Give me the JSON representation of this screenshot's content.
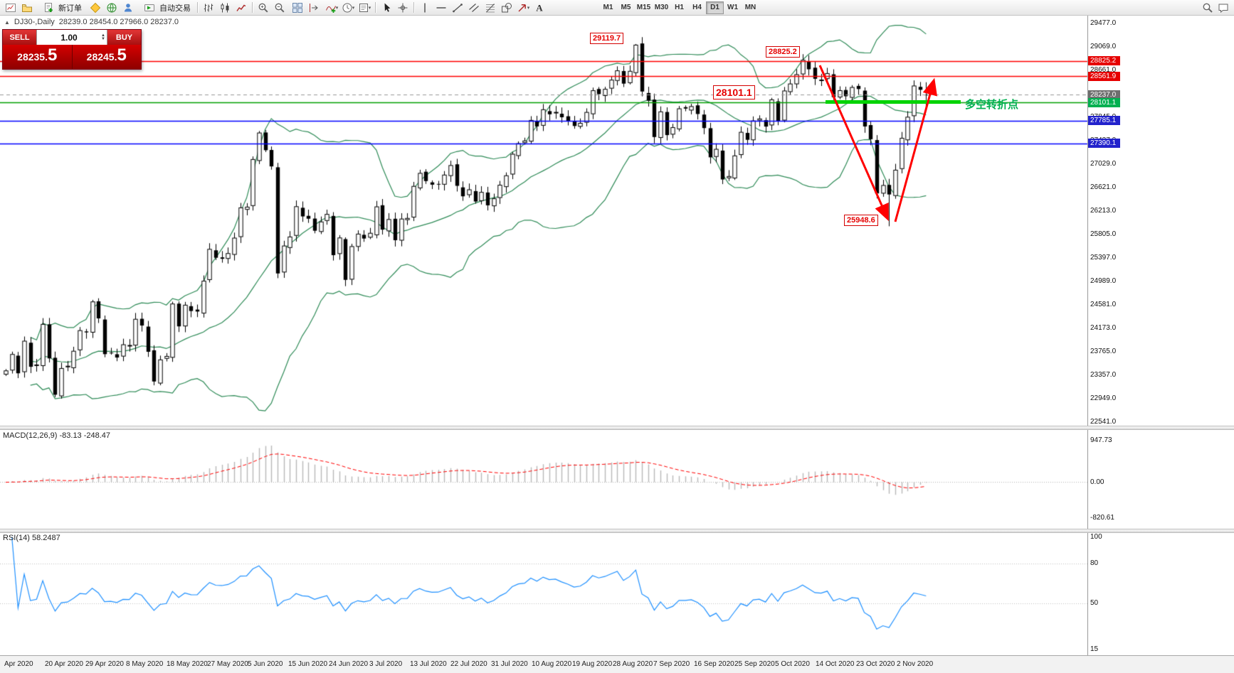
{
  "toolbar": {
    "new_order_label": "新订单",
    "autotrading_label": "自动交易",
    "timeframes": [
      "M1",
      "M5",
      "M15",
      "M30",
      "H1",
      "H4",
      "D1",
      "W1",
      "MN"
    ],
    "active_timeframe": "D1",
    "left_icons": [
      "new-chart-icon",
      "chart-profiles-icon"
    ],
    "account_icons": [
      "metaeditor-icon",
      "market-icon",
      "community-icon"
    ],
    "chart_type_icons": [
      "bars-chart-icon",
      "candlestick-chart-icon",
      "line-chart-icon"
    ],
    "zoom_icons": [
      "zoom-in-icon",
      "zoom-out-icon"
    ],
    "window_icons": [
      "auto-arrange-icon",
      "chart-shift-icon"
    ],
    "insert_icons": [
      "indicators-icon",
      "periods-icon",
      "templates-icon"
    ],
    "pointer_icons": [
      "cursor-icon",
      "crosshair-icon"
    ],
    "object_icons": [
      "vertical-line-icon",
      "horizontal-line-icon",
      "trendline-icon",
      "channel-icon",
      "fibonacci-icon",
      "shapes-icon",
      "arrow-icon",
      "text-icon"
    ],
    "right_icons": [
      "search-icon",
      "chat-icon"
    ]
  },
  "chart_header": {
    "collapse_glyph": "▲",
    "title": "DJ30-,Daily",
    "ohlc": "28239.0 28454.0 27966.0 28237.0"
  },
  "trade_panel": {
    "sell_label": "SELL",
    "buy_label": "BUY",
    "volume": "1.00",
    "sell_price": "28235.",
    "sell_price_big": "5",
    "buy_price": "28245.",
    "buy_price_big": "5"
  },
  "annotations": {
    "peak": "29119.7",
    "resistance": "28825.2",
    "pivot": "28101.1",
    "low": "25948.6",
    "note": "多空转折点"
  },
  "price_scale": {
    "gridlines": [
      "29477.0",
      "29069.0",
      "28661.0",
      "28253.0",
      "27845.0",
      "27437.0",
      "27029.0",
      "26621.0",
      "26213.0",
      "25805.0",
      "25397.0",
      "24989.0",
      "24581.0",
      "24173.0",
      "23765.0",
      "23357.0",
      "22949.0",
      "22541.0"
    ],
    "markers": [
      {
        "text": "28825.2",
        "value": 28825.2,
        "bg": "#e60000"
      },
      {
        "text": "28561.9",
        "value": 28561.9,
        "bg": "#e60000"
      },
      {
        "text": "28237.0",
        "value": 28237.0,
        "bg": "#6e6e6e"
      },
      {
        "text": "28101.1",
        "value": 28101.1,
        "bg": "#00b050"
      },
      {
        "text": "27785.1",
        "value": 27785.1,
        "bg": "#2222cc"
      },
      {
        "text": "27390.1",
        "value": 27390.1,
        "bg": "#2222cc"
      }
    ]
  },
  "macd": {
    "name": "MACD(12,26,9)",
    "values": "-83.13 -248.47",
    "scale": [
      {
        "text": "947.73",
        "value": 947.73
      },
      {
        "text": "0.00",
        "value": 0
      },
      {
        "text": "-820.61",
        "value": -820.61
      }
    ]
  },
  "rsi": {
    "name": "RSI(14)",
    "values": "58.2487",
    "scale": [
      {
        "text": "100",
        "value": 100
      },
      {
        "text": "80",
        "value": 80
      },
      {
        "text": "50",
        "value": 50
      },
      {
        "text": "15",
        "value": 15
      }
    ],
    "levels": [
      80,
      50
    ]
  },
  "date_axis": [
    "Apr 2020",
    "20 Apr 2020",
    "29 Apr 2020",
    "8 May 2020",
    "18 May 2020",
    "27 May 2020",
    "5 Jun 2020",
    "15 Jun 2020",
    "24 Jun 2020",
    "3 Jul 2020",
    "13 Jul 2020",
    "22 Jul 2020",
    "31 Jul 2020",
    "10 Aug 2020",
    "19 Aug 2020",
    "28 Aug 2020",
    "7 Sep 2020",
    "16 Sep 2020",
    "25 Sep 2020",
    "5 Oct 2020",
    "14 Oct 2020",
    "23 Oct 2020",
    "2 Nov 2020"
  ],
  "chart_data": {
    "type": "candlestick",
    "symbol": "DJ30-",
    "timeframe": "Daily",
    "last_ohlc": {
      "open": 28239.0,
      "high": 28454.0,
      "low": 27966.0,
      "close": 28237.0
    },
    "marked_points": {
      "swing_high": 29119.7,
      "resistance": 28825.2,
      "pivot_line": 28101.1,
      "swing_low": 25948.6
    },
    "closes": [
      23434,
      23719,
      23391,
      23950,
      23504,
      23537,
      24242,
      23650,
      23018,
      23475,
      23515,
      23775,
      24134,
      24102,
      24634,
      24346,
      23724,
      23750,
      23665,
      23888,
      23876,
      24331,
      24222,
      23765,
      23248,
      23625,
      23685,
      24597,
      24207,
      24576,
      24474,
      24465,
      24995,
      25548,
      25401,
      25383,
      25475,
      25743,
      26270,
      26282,
      27111,
      27572,
      27272,
      26990,
      25128,
      25606,
      25763,
      26290,
      26120,
      26080,
      25871,
      26025,
      26156,
      25446,
      25746,
      25016,
      25596,
      25813,
      25735,
      25827,
      26287,
      25890,
      26067,
      25706,
      26075,
      26086,
      26643,
      26870,
      26735,
      26672,
      26681,
      26840,
      27006,
      26652,
      26470,
      26584,
      26379,
      26539,
      26313,
      26428,
      26664,
      26828,
      27202,
      27387,
      27433,
      27791,
      27686,
      27977,
      27897,
      27931,
      27845,
      27778,
      27693,
      27740,
      27930,
      28308,
      28248,
      28332,
      28492,
      28654,
      28430,
      28645,
      29101,
      28293,
      28133,
      27501,
      27940,
      27535,
      27666,
      27993,
      27996,
      28032,
      27902,
      27657,
      27148,
      27288,
      26763,
      26815,
      27174,
      27584,
      27453,
      27782,
      27817,
      27683,
      28149,
      27773,
      28303,
      28425,
      28587,
      28838,
      28680,
      28514,
      28494,
      28606,
      28195,
      28309,
      28211,
      28364,
      28336,
      27685,
      27463,
      26520,
      26659,
      26502,
      26925,
      27480,
      27847,
      28390,
      28323,
      28237
    ],
    "overrides": {
      "102": {
        "h": 29119.7
      },
      "143": {
        "l": 25948.6
      },
      "149": {
        "o": 28239.0,
        "h": 28454.0,
        "l": 27966.0,
        "c": 28237.0
      }
    },
    "horizontal_lines": [
      {
        "value": 28825.2,
        "color": "#ff0000",
        "style": "solid"
      },
      {
        "value": 28561.9,
        "color": "#ff0000",
        "style": "solid"
      },
      {
        "value": 28237.0,
        "color": "#999999",
        "style": "dash"
      },
      {
        "value": 28101.1,
        "color": "#00a000",
        "style": "solid"
      },
      {
        "value": 27785.1,
        "color": "#0000ff",
        "style": "solid"
      },
      {
        "value": 27390.1,
        "color": "#0000ff",
        "style": "solid"
      }
    ],
    "indicators": {
      "bollinger": {
        "period": 20,
        "deviation": 2,
        "color": "#2e8b57"
      },
      "macd": {
        "fast": 12,
        "slow": 26,
        "signal": 9
      },
      "rsi": {
        "period": 14
      }
    }
  }
}
